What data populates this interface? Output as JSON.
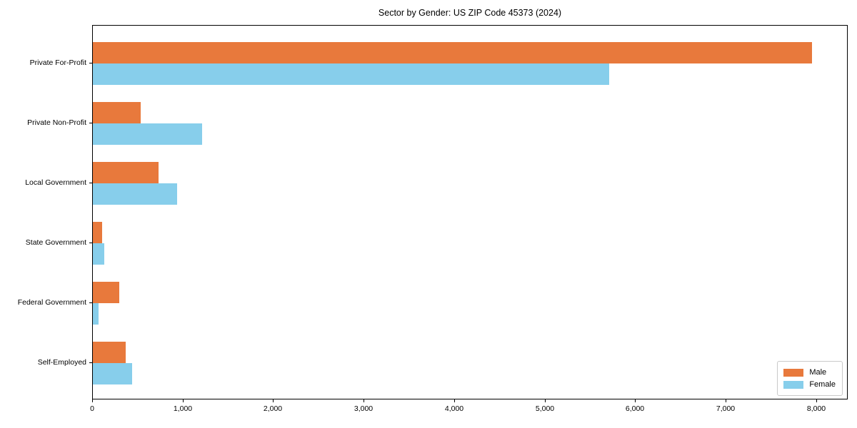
{
  "chart_data": {
    "type": "bar",
    "orientation": "horizontal",
    "title": "Sector by Gender: US ZIP Code 45373 (2024)",
    "categories": [
      "Private For-Profit",
      "Private Non-Profit",
      "Local Government",
      "State Government",
      "Federal Government",
      "Self-Employed"
    ],
    "series": [
      {
        "name": "Male",
        "color": "#E8793C",
        "values": [
          7950,
          530,
          730,
          100,
          290,
          360
        ]
      },
      {
        "name": "Female",
        "color": "#87CEEB",
        "values": [
          5710,
          1210,
          930,
          125,
          60,
          435
        ]
      }
    ],
    "xlim": [
      0,
      8350
    ],
    "xticks": [
      0,
      1000,
      2000,
      3000,
      4000,
      5000,
      6000,
      7000,
      8000
    ],
    "xtick_labels": [
      "0",
      "1,000",
      "2,000",
      "3,000",
      "4,000",
      "5,000",
      "6,000",
      "7,000",
      "8,000"
    ],
    "ylabel": "",
    "xlabel": "",
    "grid": false,
    "legend_position": "lower right"
  }
}
